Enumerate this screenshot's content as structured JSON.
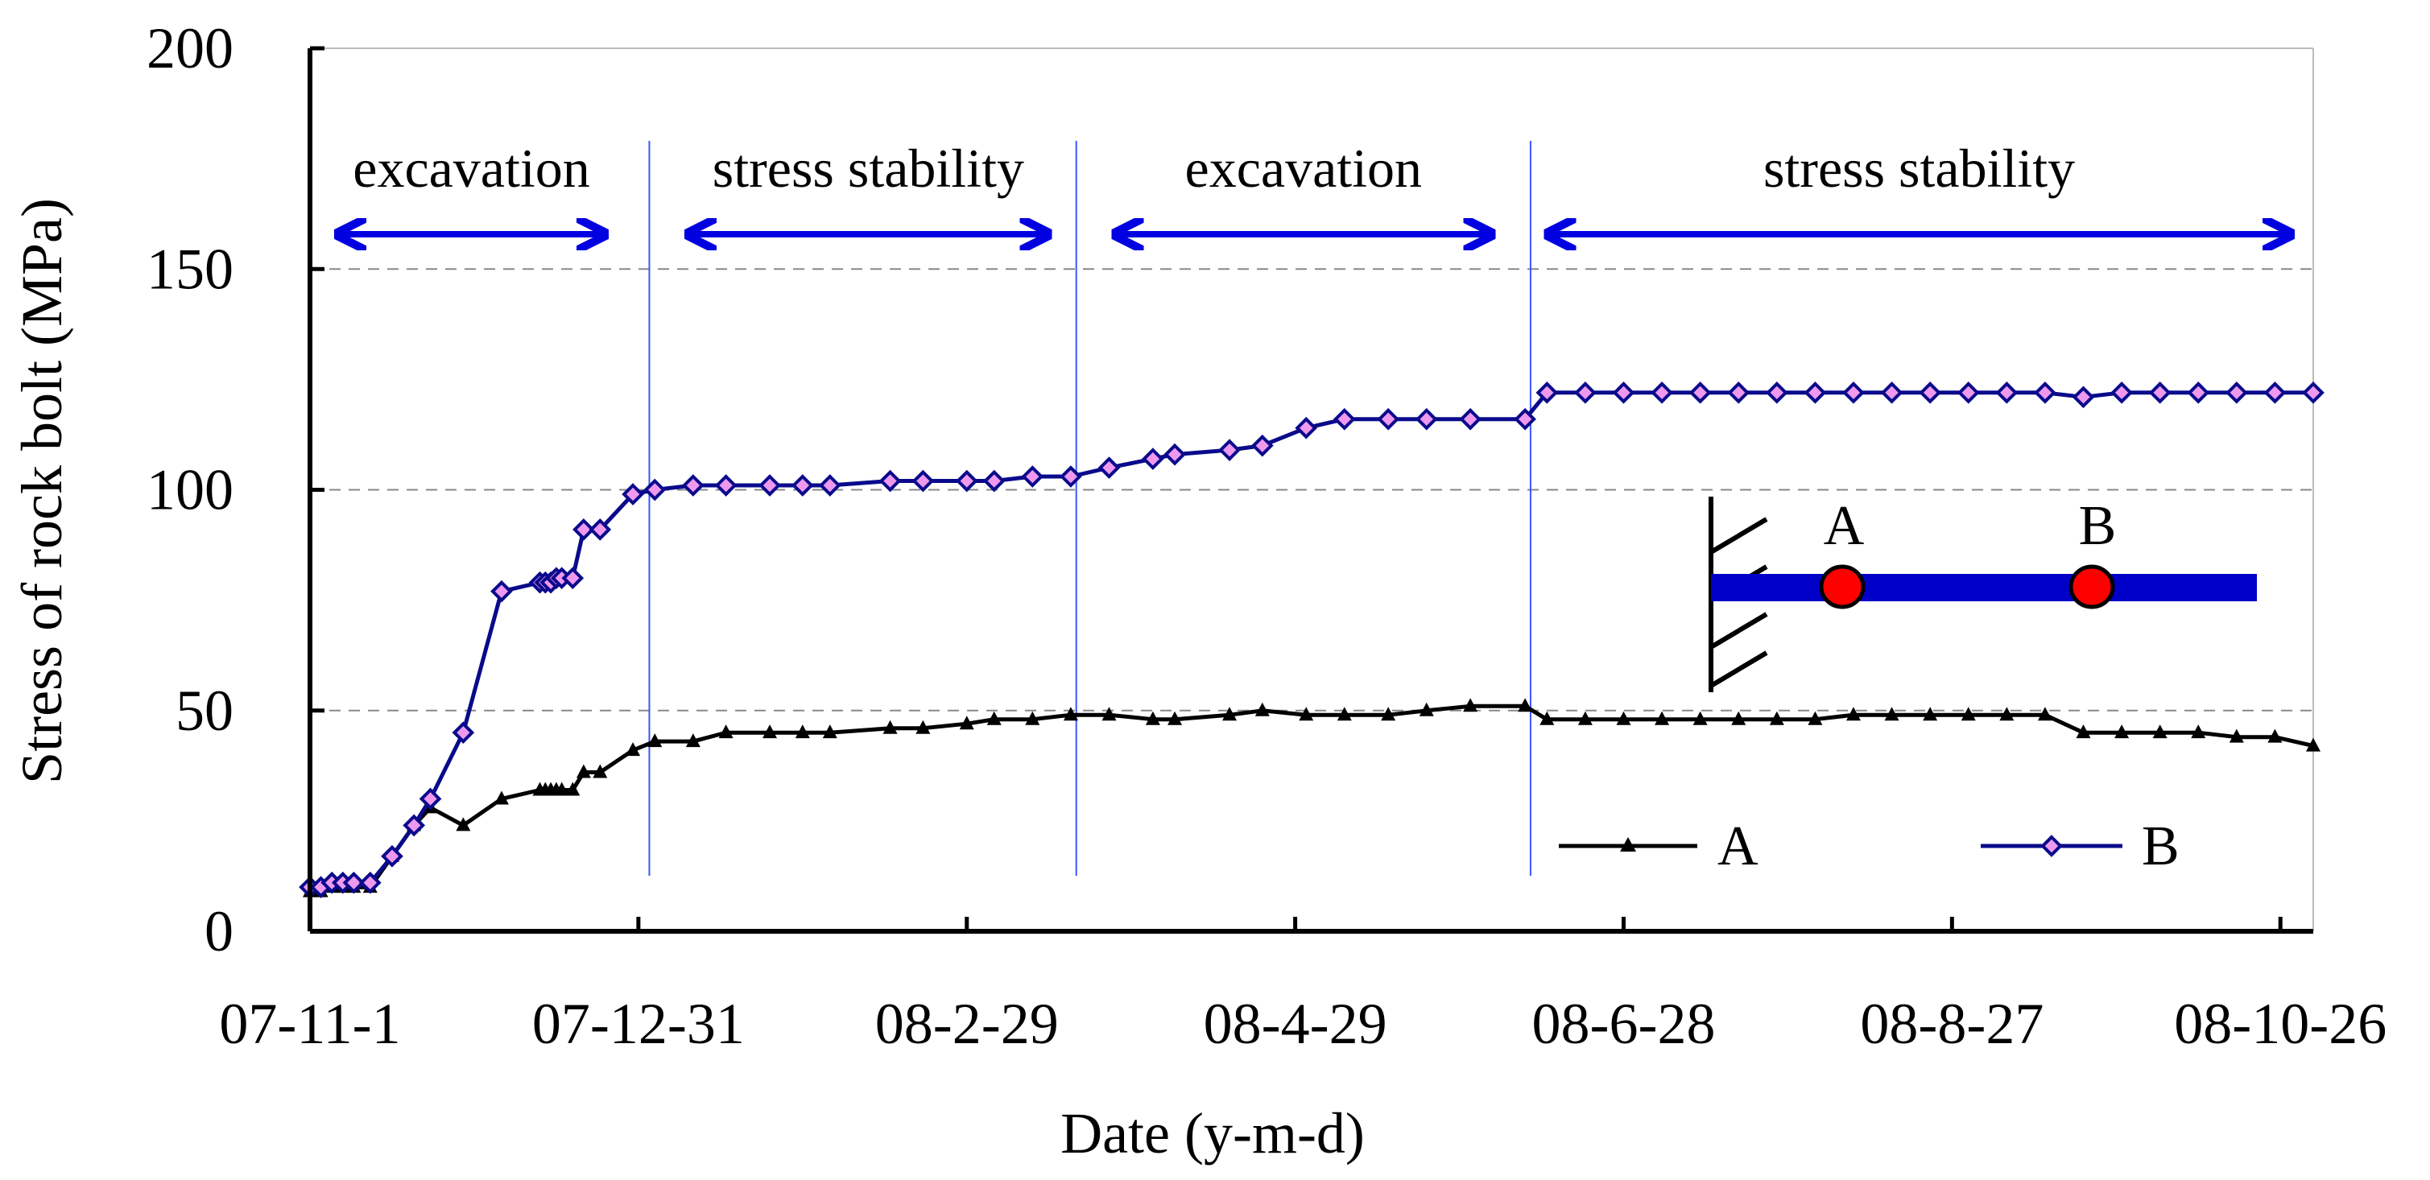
{
  "chart_data": {
    "type": "line",
    "title": "",
    "xlabel": "Date (y-m-d)",
    "ylabel": "Stress of rock bolt (MPa)",
    "x_unit": "days since 07-11-1",
    "xlim": [
      0,
      366
    ],
    "ylim": [
      0,
      200
    ],
    "yticks": [
      0,
      50,
      100,
      150,
      200
    ],
    "grid": {
      "y": true,
      "x": false
    },
    "x_ticks": [
      {
        "x": 0,
        "label": "07-11-1"
      },
      {
        "x": 60,
        "label": "07-12-31"
      },
      {
        "x": 120,
        "label": "08-2-29"
      },
      {
        "x": 180,
        "label": "08-4-29"
      },
      {
        "x": 240,
        "label": "08-6-28"
      },
      {
        "x": 300,
        "label": "08-8-27"
      },
      {
        "x": 360,
        "label": "08-10-26"
      }
    ],
    "phase_boundaries": [
      62,
      140,
      223
    ],
    "phases": [
      {
        "label": "excavation",
        "from": 5,
        "to": 54
      },
      {
        "label": "stress stability",
        "from": 69,
        "to": 135
      },
      {
        "label": "excavation",
        "from": 147,
        "to": 216
      },
      {
        "label": "stress stability",
        "from": 226,
        "to": 362
      }
    ],
    "legend": {
      "placement": "bottom-right",
      "entries": [
        "A",
        "B"
      ]
    },
    "series": [
      {
        "name": "A",
        "color": "#000000",
        "marker": "triangle",
        "x": [
          0,
          2,
          4,
          6,
          8,
          11,
          15,
          19,
          22,
          28,
          35,
          42,
          43,
          44,
          45,
          46,
          48,
          50,
          53,
          59,
          63,
          70,
          76,
          84,
          90,
          95,
          106,
          112,
          120,
          125,
          132,
          139,
          146,
          154,
          158,
          168,
          174,
          182,
          189,
          197,
          204,
          212,
          222,
          226,
          233,
          240,
          247,
          254,
          261,
          268,
          275,
          282,
          289,
          296,
          303,
          310,
          317,
          324,
          331,
          338,
          345,
          352,
          359,
          366
        ],
        "y": [
          9,
          9,
          10,
          10,
          10,
          10,
          17,
          24,
          28,
          24,
          30,
          32,
          32,
          32,
          32,
          32,
          32,
          36,
          36,
          41,
          43,
          43,
          45,
          45,
          45,
          45,
          46,
          46,
          47,
          48,
          48,
          49,
          49,
          48,
          48,
          49,
          50,
          49,
          49,
          49,
          50,
          51,
          51,
          48,
          48,
          48,
          48,
          48,
          48,
          48,
          48,
          49,
          49,
          49,
          49,
          49,
          49,
          45,
          45,
          45,
          45,
          44,
          44,
          42
        ]
      },
      {
        "name": "B",
        "color": "#0a0a8c",
        "marker": "diamond",
        "marker_fill": "#ee99ee",
        "x": [
          0,
          2,
          4,
          6,
          8,
          11,
          15,
          19,
          22,
          28,
          35,
          42,
          43,
          44,
          45,
          46,
          48,
          50,
          53,
          59,
          63,
          70,
          76,
          84,
          90,
          95,
          106,
          112,
          120,
          125,
          132,
          139,
          146,
          154,
          158,
          168,
          174,
          182,
          189,
          197,
          204,
          212,
          222,
          226,
          233,
          240,
          247,
          254,
          261,
          268,
          275,
          282,
          289,
          296,
          303,
          310,
          317,
          324,
          331,
          338,
          345,
          352,
          359,
          366
        ],
        "y": [
          10,
          10,
          11,
          11,
          11,
          11,
          17,
          24,
          30,
          45,
          77,
          79,
          79,
          79,
          80,
          80,
          80,
          91,
          91,
          99,
          100,
          101,
          101,
          101,
          101,
          101,
          102,
          102,
          102,
          102,
          103,
          103,
          105,
          107,
          108,
          109,
          110,
          114,
          116,
          116,
          116,
          116,
          116,
          122,
          122,
          122,
          122,
          122,
          122,
          122,
          122,
          122,
          122,
          122,
          122,
          122,
          122,
          121,
          122,
          122,
          122,
          122,
          122,
          122
        ]
      }
    ]
  },
  "inset": {
    "points": [
      "A",
      "B"
    ],
    "bolt_color": "#0000c8",
    "point_color": "#ff0000"
  },
  "colors": {
    "phase_arrow": "#0000e0",
    "phase_divider": "#3a55ff",
    "grid": "#888888",
    "axis": "#000000"
  }
}
